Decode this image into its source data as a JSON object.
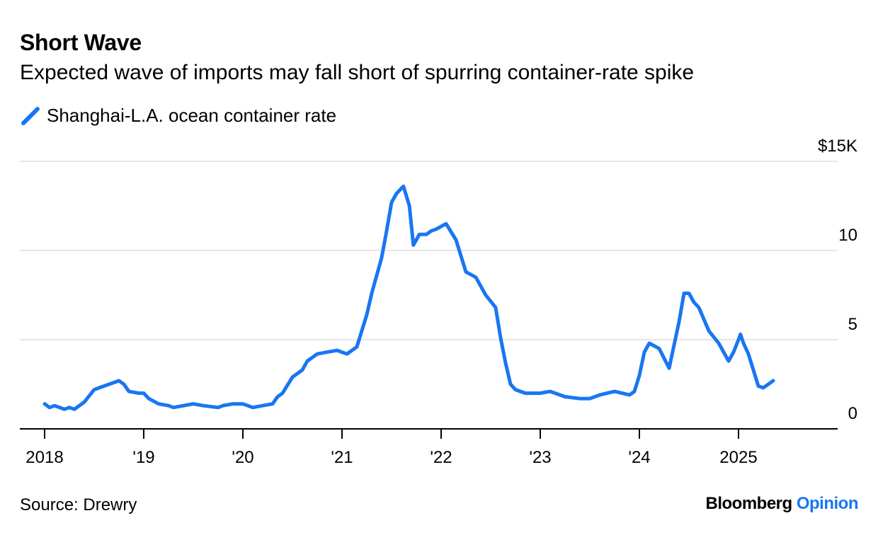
{
  "header": {
    "title": "Short Wave",
    "subtitle": "Expected wave of imports may fall short of spurring container-rate spike"
  },
  "footer": {
    "source": "Source: Drewry",
    "brand_main": "Bloomberg",
    "brand_accent": "Opinion"
  },
  "colors": {
    "series": "#1976f2",
    "grid": "#e6e6e6",
    "axis": "#000000"
  },
  "chart_data": {
    "type": "line",
    "y_axis_position": "right",
    "legend_position": "top-left",
    "grid": true,
    "ylim": [
      0,
      15
    ],
    "y_ticks": [
      0,
      5,
      10,
      15
    ],
    "y_tick_labels": [
      "0",
      "5",
      "10",
      "$15K"
    ],
    "xlim": [
      2018,
      2026
    ],
    "x_ticks": [
      2018,
      2019,
      2020,
      2021,
      2022,
      2023,
      2024,
      2025
    ],
    "x_tick_labels": [
      "2018",
      "'19",
      "'20",
      "'21",
      "'22",
      "'23",
      "'24",
      "2025"
    ],
    "series": [
      {
        "name": "Shanghai-L.A. ocean container rate",
        "x": [
          2018.0,
          2018.05,
          2018.1,
          2018.2,
          2018.25,
          2018.3,
          2018.4,
          2018.5,
          2018.55,
          2018.6,
          2018.75,
          2018.8,
          2018.85,
          2018.95,
          2019.0,
          2019.05,
          2019.15,
          2019.25,
          2019.3,
          2019.5,
          2019.6,
          2019.75,
          2019.8,
          2019.9,
          2020.0,
          2020.1,
          2020.2,
          2020.3,
          2020.35,
          2020.4,
          2020.5,
          2020.6,
          2020.65,
          2020.75,
          2020.85,
          2020.95,
          2021.05,
          2021.15,
          2021.25,
          2021.3,
          2021.4,
          2021.45,
          2021.5,
          2021.55,
          2021.62,
          2021.68,
          2021.72,
          2021.78,
          2021.85,
          2021.9,
          2021.95,
          2022.05,
          2022.15,
          2022.25,
          2022.35,
          2022.45,
          2022.55,
          2022.6,
          2022.65,
          2022.7,
          2022.75,
          2022.85,
          2023.0,
          2023.1,
          2023.25,
          2023.4,
          2023.5,
          2023.6,
          2023.75,
          2023.9,
          2023.95,
          2024.0,
          2024.05,
          2024.1,
          2024.2,
          2024.3,
          2024.4,
          2024.45,
          2024.5,
          2024.55,
          2024.6,
          2024.7,
          2024.8,
          2024.9,
          2024.95,
          2025.0,
          2025.02,
          2025.05,
          2025.1,
          2025.2,
          2025.25,
          2025.3,
          2025.35
        ],
        "values": [
          1.4,
          1.2,
          1.3,
          1.1,
          1.2,
          1.1,
          1.5,
          2.2,
          2.3,
          2.4,
          2.7,
          2.5,
          2.1,
          2.0,
          2.0,
          1.7,
          1.4,
          1.3,
          1.2,
          1.4,
          1.3,
          1.2,
          1.3,
          1.4,
          1.4,
          1.2,
          1.3,
          1.4,
          1.8,
          2.0,
          2.9,
          3.3,
          3.8,
          4.2,
          4.3,
          4.4,
          4.2,
          4.6,
          6.4,
          7.6,
          9.6,
          11.1,
          12.7,
          13.2,
          13.6,
          12.5,
          10.3,
          10.9,
          10.9,
          11.1,
          11.2,
          11.5,
          10.6,
          8.8,
          8.5,
          7.5,
          6.8,
          5.1,
          3.7,
          2.5,
          2.2,
          2.0,
          2.0,
          2.1,
          1.8,
          1.7,
          1.7,
          1.9,
          2.1,
          1.9,
          2.1,
          3.0,
          4.3,
          4.8,
          4.5,
          3.4,
          6.0,
          7.6,
          7.6,
          7.1,
          6.8,
          5.5,
          4.8,
          3.8,
          4.3,
          5.0,
          5.3,
          4.8,
          4.2,
          2.4,
          2.3,
          2.5,
          2.7
        ]
      }
    ]
  }
}
